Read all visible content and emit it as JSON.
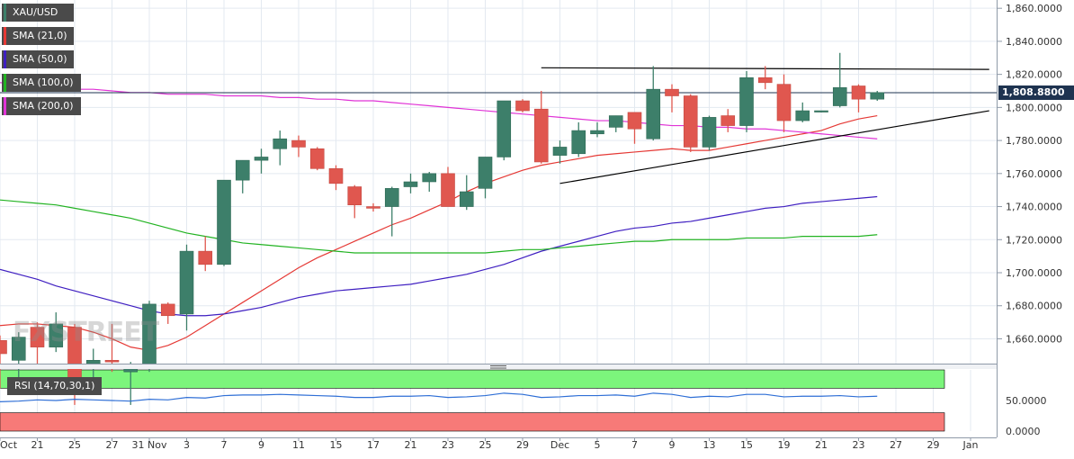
{
  "chart_data": {
    "type": "candlestick",
    "symbol": "XAU/USD",
    "last_price_label": "1,808.8800",
    "last_price": 1808.88,
    "y_axis": {
      "min": 1645,
      "max": 1865,
      "ticks": [
        {
          "value": 1860,
          "label": "1,860.0000"
        },
        {
          "value": 1840,
          "label": "1,840.0000"
        },
        {
          "value": 1820,
          "label": "1,820.0000"
        },
        {
          "value": 1800,
          "label": "1,800.0000"
        },
        {
          "value": 1780,
          "label": "1,780.0000"
        },
        {
          "value": 1760,
          "label": "1,760.0000"
        },
        {
          "value": 1740,
          "label": "1,740.0000"
        },
        {
          "value": 1720,
          "label": "1,720.0000"
        },
        {
          "value": 1700,
          "label": "1,700.0000"
        },
        {
          "value": 1680,
          "label": "1,680.0000"
        },
        {
          "value": 1660,
          "label": "1,660.0000"
        }
      ]
    },
    "x_labels": [
      "Oct",
      "21",
      "25",
      "27",
      "31 Nov",
      "3",
      "7",
      "9",
      "11",
      "15",
      "17",
      "21",
      "23",
      "25",
      "29",
      "Dec",
      "5",
      "7",
      "9",
      "13",
      "15",
      "19",
      "21",
      "23",
      "27",
      "29",
      "Jan"
    ],
    "candles": [
      {
        "o": 1659,
        "h": 1662,
        "l": 1630,
        "c": 1651
      },
      {
        "o": 1647,
        "h": 1664,
        "l": 1630,
        "c": 1661
      },
      {
        "o": 1667,
        "h": 1670,
        "l": 1643,
        "c": 1655
      },
      {
        "o": 1655,
        "h": 1676,
        "l": 1652,
        "c": 1669
      },
      {
        "o": 1667,
        "h": 1669,
        "l": 1620,
        "c": 1633
      },
      {
        "o": 1644,
        "h": 1654,
        "l": 1633,
        "c": 1647
      },
      {
        "o": 1647,
        "h": 1669,
        "l": 1640,
        "c": 1646
      },
      {
        "o": 1640,
        "h": 1646,
        "l": 1620,
        "c": 1642
      },
      {
        "o": 1642,
        "h": 1683,
        "l": 1640,
        "c": 1681
      },
      {
        "o": 1681,
        "h": 1682,
        "l": 1669,
        "c": 1674
      },
      {
        "o": 1675,
        "h": 1717,
        "l": 1665,
        "c": 1713
      },
      {
        "o": 1713,
        "h": 1722,
        "l": 1701,
        "c": 1705
      },
      {
        "o": 1705,
        "h": 1756,
        "l": 1704,
        "c": 1756
      },
      {
        "o": 1756,
        "h": 1768,
        "l": 1748,
        "c": 1768
      },
      {
        "o": 1768,
        "h": 1775,
        "l": 1760,
        "c": 1770
      },
      {
        "o": 1775,
        "h": 1786,
        "l": 1765,
        "c": 1781
      },
      {
        "o": 1780,
        "h": 1783,
        "l": 1770,
        "c": 1776
      },
      {
        "o": 1775,
        "h": 1776,
        "l": 1762,
        "c": 1763
      },
      {
        "o": 1763,
        "h": 1765,
        "l": 1750,
        "c": 1754
      },
      {
        "o": 1752,
        "h": 1753,
        "l": 1733,
        "c": 1741
      },
      {
        "o": 1740,
        "h": 1742,
        "l": 1737,
        "c": 1739
      },
      {
        "o": 1740,
        "h": 1752,
        "l": 1722,
        "c": 1751
      },
      {
        "o": 1752,
        "h": 1760,
        "l": 1748,
        "c": 1755
      },
      {
        "o": 1755,
        "h": 1761,
        "l": 1749,
        "c": 1760
      },
      {
        "o": 1760,
        "h": 1764,
        "l": 1740,
        "c": 1740
      },
      {
        "o": 1740,
        "h": 1759,
        "l": 1738,
        "c": 1749
      },
      {
        "o": 1751,
        "h": 1770,
        "l": 1745,
        "c": 1770
      },
      {
        "o": 1770,
        "h": 1804,
        "l": 1768,
        "c": 1804
      },
      {
        "o": 1804,
        "h": 1805,
        "l": 1797,
        "c": 1798
      },
      {
        "o": 1799,
        "h": 1810,
        "l": 1766,
        "c": 1767
      },
      {
        "o": 1771,
        "h": 1780,
        "l": 1766,
        "c": 1776
      },
      {
        "o": 1772,
        "h": 1791,
        "l": 1770,
        "c": 1786
      },
      {
        "o": 1784,
        "h": 1791,
        "l": 1782,
        "c": 1786
      },
      {
        "o": 1788,
        "h": 1795,
        "l": 1785,
        "c": 1795
      },
      {
        "o": 1797,
        "h": 1797,
        "l": 1778,
        "c": 1787
      },
      {
        "o": 1781,
        "h": 1825,
        "l": 1780,
        "c": 1811
      },
      {
        "o": 1811,
        "h": 1814,
        "l": 1797,
        "c": 1807
      },
      {
        "o": 1807,
        "h": 1808,
        "l": 1773,
        "c": 1776
      },
      {
        "o": 1776,
        "h": 1795,
        "l": 1774,
        "c": 1794
      },
      {
        "o": 1795,
        "h": 1799,
        "l": 1785,
        "c": 1789
      },
      {
        "o": 1789,
        "h": 1822,
        "l": 1785,
        "c": 1818
      },
      {
        "o": 1818,
        "h": 1825,
        "l": 1811,
        "c": 1815
      },
      {
        "o": 1814,
        "h": 1820,
        "l": 1785,
        "c": 1792
      },
      {
        "o": 1792,
        "h": 1803,
        "l": 1791,
        "c": 1798
      },
      {
        "o": 1798,
        "h": 1798,
        "l": 1797,
        "c": 1798
      },
      {
        "o": 1801,
        "h": 1833,
        "l": 1800,
        "c": 1812
      },
      {
        "o": 1813,
        "h": 1814,
        "l": 1797,
        "c": 1805
      },
      {
        "o": 1805,
        "h": 1810,
        "l": 1804,
        "c": 1809
      }
    ],
    "series": [
      {
        "name": "SMA (21,0)",
        "color": "#e53935",
        "values": [
          1668,
          1669,
          1669,
          1668,
          1667,
          1664,
          1660,
          1655,
          1653,
          1656,
          1661,
          1668,
          1675,
          1682,
          1689,
          1696,
          1703,
          1709,
          1714,
          1719,
          1724,
          1729,
          1733,
          1738,
          1743,
          1749,
          1754,
          1758,
          1762,
          1765,
          1767,
          1769,
          1771,
          1772,
          1773,
          1774,
          1775,
          1774,
          1774,
          1776,
          1778,
          1780,
          1782,
          1784,
          1786,
          1790,
          1793,
          1795
        ]
      },
      {
        "name": "SMA (50,0)",
        "color": "#3f1fc1",
        "values": [
          1702,
          1699,
          1696,
          1692,
          1689,
          1686,
          1683,
          1680,
          1677,
          1675,
          1674,
          1674,
          1675,
          1677,
          1679,
          1682,
          1685,
          1687,
          1689,
          1690,
          1691,
          1692,
          1693,
          1695,
          1697,
          1699,
          1702,
          1705,
          1709,
          1713,
          1716,
          1719,
          1722,
          1725,
          1727,
          1728,
          1730,
          1731,
          1733,
          1735,
          1737,
          1739,
          1740,
          1742,
          1743,
          1744,
          1745,
          1746
        ]
      },
      {
        "name": "SMA (100,0)",
        "color": "#22b322",
        "values": [
          1744,
          1743,
          1742,
          1741,
          1739,
          1737,
          1735,
          1733,
          1730,
          1727,
          1724,
          1722,
          1720,
          1718,
          1717,
          1716,
          1715,
          1714,
          1713,
          1712,
          1712,
          1712,
          1712,
          1712,
          1712,
          1712,
          1712,
          1713,
          1714,
          1714,
          1715,
          1716,
          1717,
          1718,
          1719,
          1719,
          1720,
          1720,
          1720,
          1720,
          1721,
          1721,
          1721,
          1722,
          1722,
          1722,
          1722,
          1723
        ]
      },
      {
        "name": "SMA (200,0)",
        "color": "#e033d6",
        "values": [
          1815,
          1814,
          1813,
          1812,
          1811,
          1811,
          1810,
          1809,
          1809,
          1808,
          1808,
          1808,
          1807,
          1807,
          1807,
          1806,
          1806,
          1805,
          1805,
          1804,
          1804,
          1803,
          1802,
          1801,
          1800,
          1799,
          1798,
          1797,
          1796,
          1795,
          1794,
          1793,
          1792,
          1792,
          1791,
          1790,
          1789,
          1789,
          1788,
          1788,
          1787,
          1787,
          1786,
          1785,
          1784,
          1783,
          1782,
          1781
        ]
      }
    ],
    "trendlines": [
      {
        "x1": 29,
        "y1": 1824,
        "x2": 53,
        "y2": 1823
      },
      {
        "x1": 30,
        "y1": 1754,
        "x2": 53,
        "y2": 1798
      }
    ],
    "rsi": {
      "label": "RSI (14,70,30,1)",
      "min": 0,
      "max": 100,
      "overbought": 70,
      "oversold": 30,
      "tick_label": "50.0000",
      "tick_label_zero": "0.0000",
      "values": [
        48,
        49,
        51,
        50,
        52,
        51,
        50,
        49,
        52,
        51,
        55,
        54,
        58,
        59,
        59,
        60,
        59,
        58,
        57,
        55,
        55,
        57,
        57,
        58,
        55,
        56,
        58,
        62,
        60,
        55,
        56,
        58,
        58,
        59,
        57,
        62,
        60,
        55,
        57,
        56,
        60,
        60,
        56,
        57,
        57,
        58,
        56,
        57
      ]
    }
  },
  "legend": [
    {
      "label": "XAU/USD",
      "color": "#3d7f6a"
    },
    {
      "label": "SMA (21,0)",
      "color": "#e53935"
    },
    {
      "label": "SMA (50,0)",
      "color": "#3f1fc1"
    },
    {
      "label": "SMA (100,0)",
      "color": "#22b322"
    },
    {
      "label": "SMA (200,0)",
      "color": "#e033d6"
    }
  ],
  "watermark": "FXSTREET",
  "colors": {
    "up": "#3d7f6a",
    "down": "#e0574f",
    "grid": "#e3e9f0",
    "price_line": "#1e3350"
  }
}
